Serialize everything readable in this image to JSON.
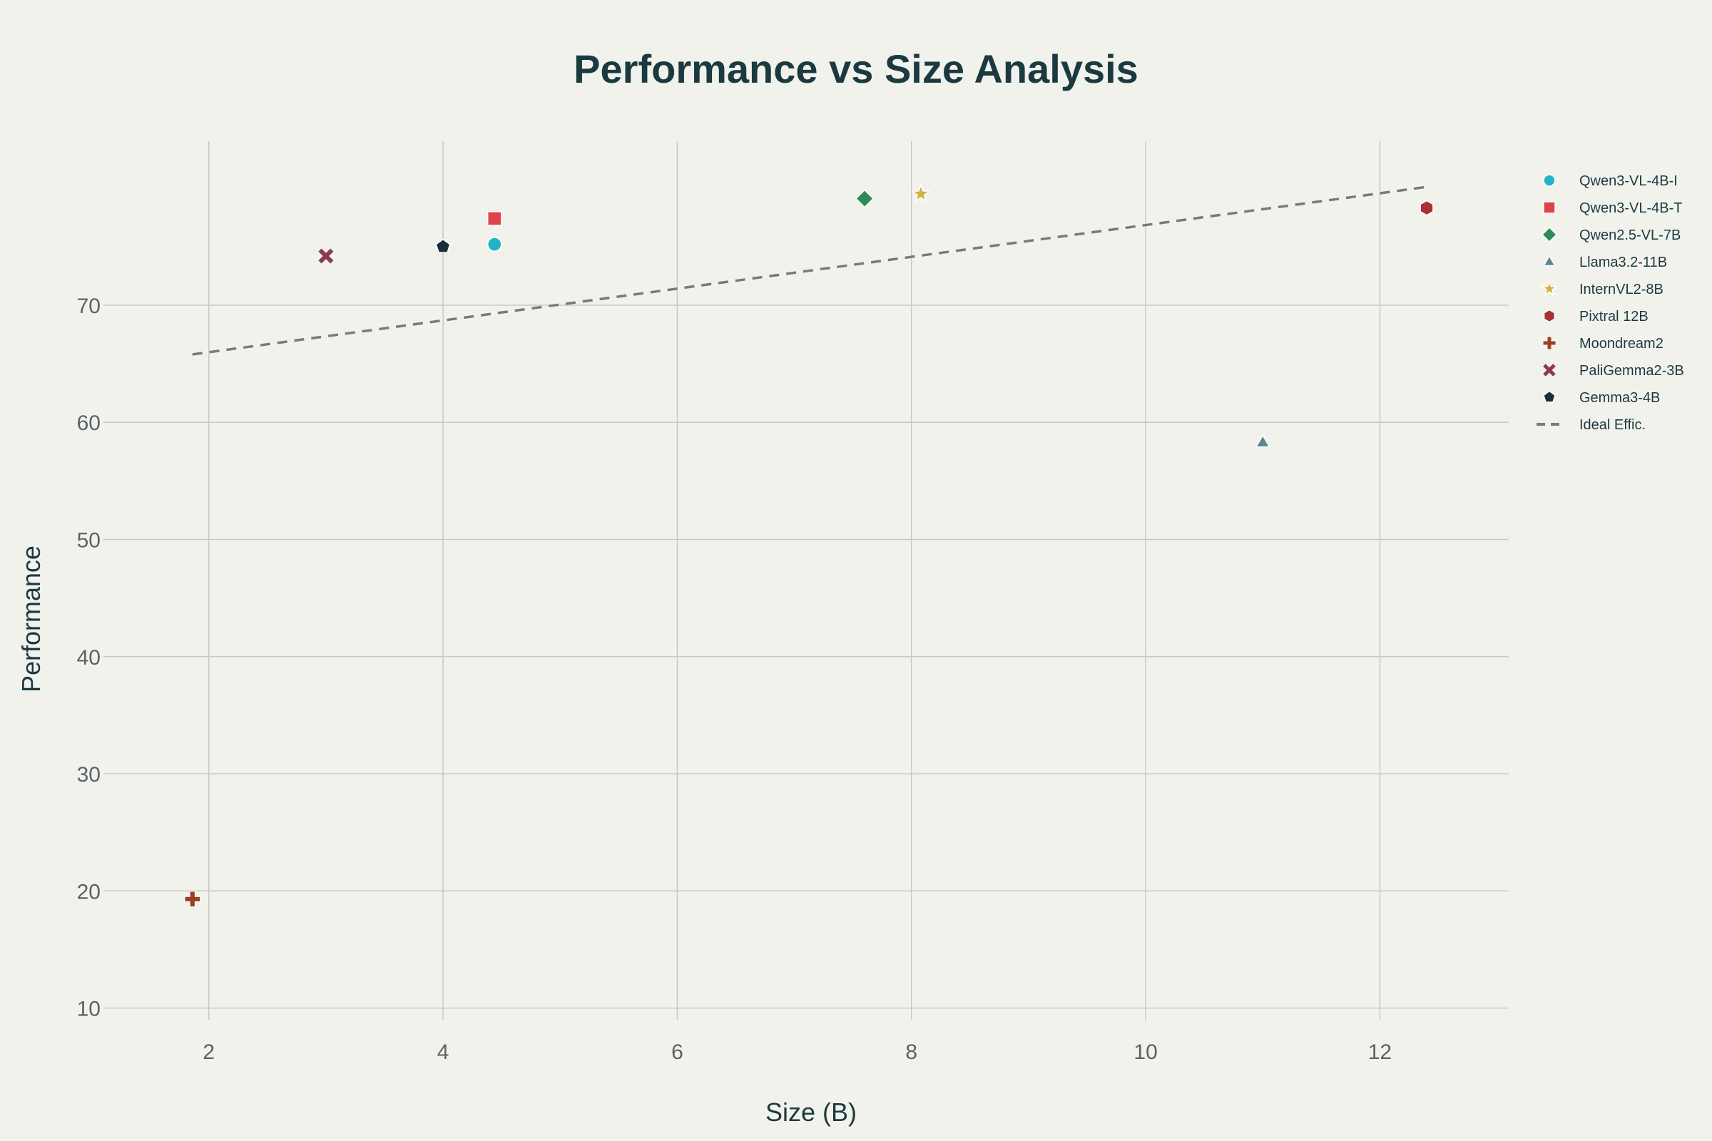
{
  "chart_data": {
    "type": "scatter",
    "title": "Performance vs Size Analysis",
    "xlabel": "Size (B)",
    "ylabel": "Performance",
    "xlim": [
      1.1,
      13.1
    ],
    "ylim": [
      9,
      84
    ],
    "xticks": [
      2,
      4,
      6,
      8,
      10,
      12
    ],
    "yticks": [
      10,
      20,
      30,
      40,
      50,
      60,
      70
    ],
    "grid": true,
    "legend_position": "right",
    "series": [
      {
        "name": "Qwen3-VL-4B-I",
        "color": "#22b3c9",
        "marker": "circle",
        "x": [
          4.44
        ],
        "y": [
          75.2
        ]
      },
      {
        "name": "Qwen3-VL-4B-T",
        "color": "#dd4449",
        "marker": "square",
        "x": [
          4.44
        ],
        "y": [
          77.4
        ]
      },
      {
        "name": "Qwen2.5-VL-7B",
        "color": "#2e8b57",
        "marker": "diamond",
        "x": [
          7.6
        ],
        "y": [
          79.1
        ]
      },
      {
        "name": "Llama3.2-11B",
        "color": "#5e8690",
        "marker": "triangle-up",
        "x": [
          11.0
        ],
        "y": [
          58.3
        ]
      },
      {
        "name": "InternVL2-8B",
        "color": "#d4b040",
        "marker": "star",
        "x": [
          8.08
        ],
        "y": [
          79.5
        ]
      },
      {
        "name": "Pixtral 12B",
        "color": "#a83232",
        "marker": "hexagon",
        "x": [
          12.4
        ],
        "y": [
          78.3
        ]
      },
      {
        "name": "Moondream2",
        "color": "#9b3f24",
        "marker": "cross",
        "x": [
          1.86
        ],
        "y": [
          19.3
        ]
      },
      {
        "name": "PaliGemma2-3B",
        "color": "#8e3a4e",
        "marker": "x",
        "x": [
          3.0
        ],
        "y": [
          74.2
        ]
      },
      {
        "name": "Gemma3-4B",
        "color": "#17303a",
        "marker": "pentagon",
        "x": [
          4.0
        ],
        "y": [
          75.0
        ]
      },
      {
        "name": "Ideal Effic.",
        "color": "#7a7a7a",
        "marker": "dash-line",
        "x": [
          1.86,
          12.4
        ],
        "y": [
          65.8,
          80.1
        ]
      }
    ]
  }
}
